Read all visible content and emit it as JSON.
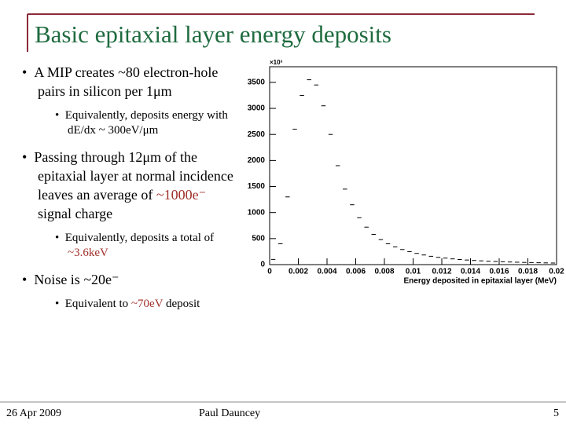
{
  "slide": {
    "title": "Basic epitaxial layer energy deposits",
    "bullets": [
      {
        "level": 1,
        "parts": [
          "A MIP creates ~80 electron-hole pairs in silicon per 1μm"
        ]
      },
      {
        "level": 2,
        "parts": [
          "Equivalently, deposits energy with dE/dx ~ 300eV/μm"
        ]
      },
      {
        "level": 1,
        "parts": [
          "Passing through 12μm of the epitaxial layer at normal incidence leaves an average of ",
          "~1000e⁻",
          " signal charge"
        ]
      },
      {
        "level": 2,
        "parts": [
          "Equivalently, deposits a total of ",
          "~3.6keV"
        ]
      },
      {
        "level": 1,
        "parts": [
          "Noise is ~20e⁻"
        ]
      },
      {
        "level": 2,
        "parts": [
          "Equivalent to ",
          "~70eV",
          " deposit"
        ]
      }
    ],
    "footer": {
      "date": "26 Apr 2009",
      "author": "Paul Dauncey",
      "page": "5"
    }
  },
  "chart_data": {
    "type": "histogram",
    "x_label": "Energy deposited in epitaxial layer (MeV)",
    "y_multiplier": "×10³",
    "bins": [
      0,
      0.0005,
      0.001,
      0.0015,
      0.002,
      0.0025,
      0.003,
      0.0035,
      0.004,
      0.0045,
      0.005,
      0.0055,
      0.006,
      0.0065,
      0.007,
      0.0075,
      0.008,
      0.0085,
      0.009,
      0.0095,
      0.01,
      0.0105,
      0.011,
      0.0115,
      0.012,
      0.0125,
      0.013,
      0.0135,
      0.014,
      0.0145,
      0.015,
      0.0155,
      0.016,
      0.0165,
      0.017,
      0.0175,
      0.018,
      0.0185,
      0.019,
      0.0195,
      0.02
    ],
    "values": [
      100,
      400,
      1300,
      2600,
      3250,
      3550,
      3450,
      3050,
      2500,
      1900,
      1450,
      1150,
      900,
      720,
      580,
      480,
      400,
      340,
      290,
      250,
      215,
      185,
      160,
      140,
      125,
      110,
      98,
      88,
      80,
      72,
      65,
      60,
      55,
      50,
      46,
      42,
      39,
      36,
      33,
      30
    ],
    "color": "#000000",
    "xlim": [
      0,
      0.02
    ],
    "xticks": [
      0,
      0.002,
      0.004,
      0.006,
      0.008,
      0.01,
      0.012,
      0.014,
      0.016,
      0.018,
      0.02
    ],
    "ylim": [
      0,
      3800
    ],
    "yticks": [
      0,
      500,
      1000,
      1500,
      2000,
      2500,
      3000,
      3500
    ]
  }
}
